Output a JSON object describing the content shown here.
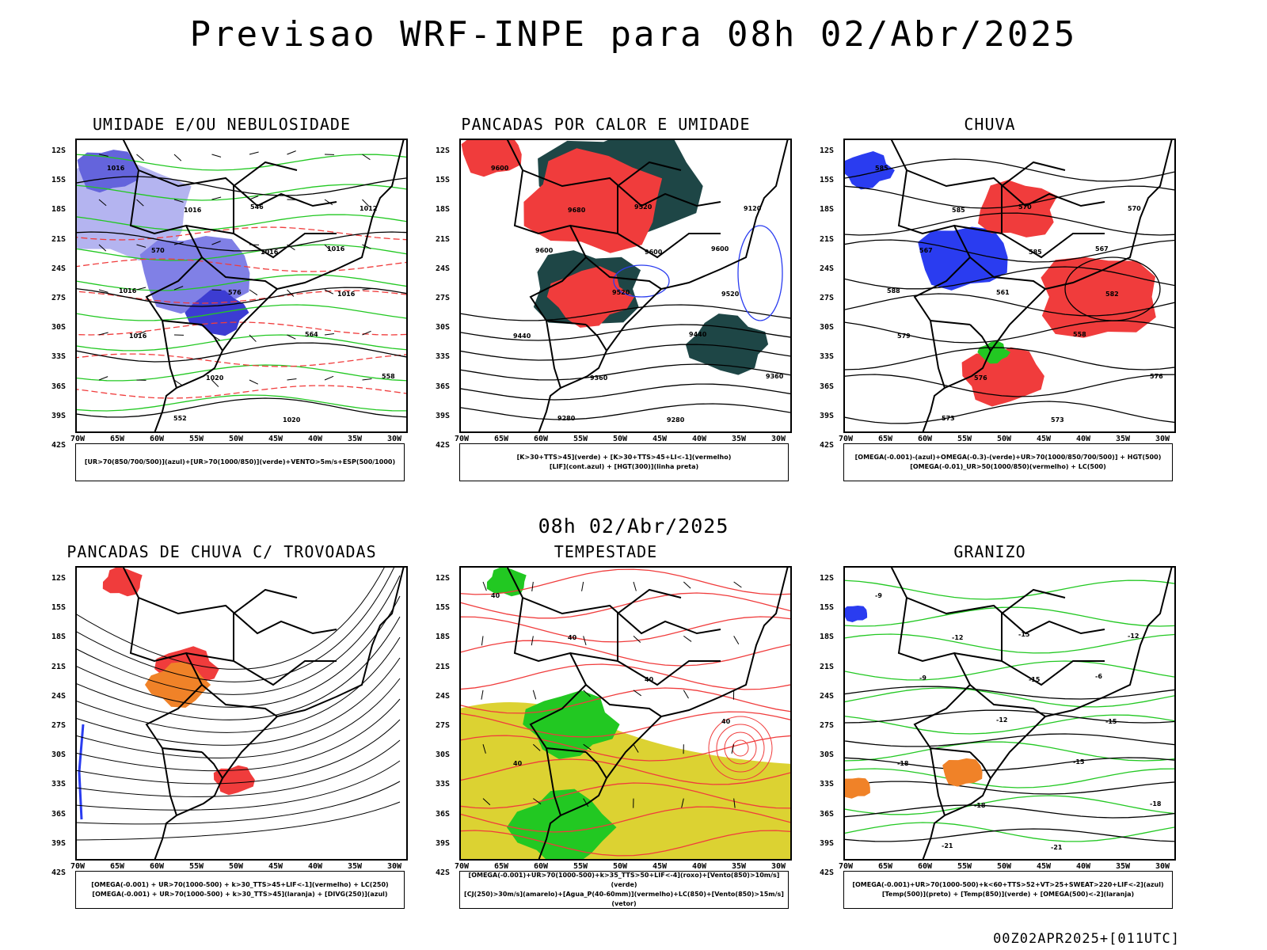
{
  "title": "Previsao WRF-INPE  para 08h 02/Abr/2025",
  "middle_label": "08h 02/Abr/2025",
  "footer_label": "00Z02APR2025+[011UTC]",
  "axes": {
    "lat_labels": [
      "12S",
      "15S",
      "18S",
      "21S",
      "24S",
      "27S",
      "30S",
      "33S",
      "36S",
      "39S",
      "42S"
    ],
    "lon_labels": [
      "70W",
      "65W",
      "60W",
      "55W",
      "50W",
      "45W",
      "40W",
      "35W",
      "30W"
    ]
  },
  "colors": {
    "red": "#f03c3c",
    "blue": "#2a3cf0",
    "green": "#22c822",
    "darkteal": "#1e4646",
    "yellow": "#dcd232",
    "orange": "#f08228",
    "lavender": "#b4b4f0"
  },
  "panels": [
    {
      "title": "UMIDADE E/OU NEBULOSIDADE",
      "legend": [
        "[UR>70(850/700/500)](azul)+[UR>70(1000/850)](verde)+VENTO>5m/s+ESP(500/1000)"
      ],
      "contour_labels": [
        "1016",
        "1016",
        "1016",
        "1016",
        "1016",
        "1020",
        "1020",
        "1012",
        "570",
        "576",
        "564",
        "558",
        "552",
        "546",
        "1016",
        "1016"
      ]
    },
    {
      "title": "PANCADAS POR CALOR E UMIDADE",
      "legend": [
        "[K>30+TTS>45](verde) + [K>30+TTS>45+LI<-1](vermelho)",
        "[LIF](cont.azul) + [HGT(300)](linha preta)"
      ],
      "contour_labels": [
        "9600",
        "9680",
        "9600",
        "9520",
        "9440",
        "9360",
        "9280",
        "9120",
        "9600",
        "9520",
        "9440",
        "9360",
        "9280",
        "9520",
        "9600"
      ]
    },
    {
      "title": "CHUVA",
      "legend": [
        "[OMEGA(-0.001)-(azul)+OMEGA(-0.3)-(verde)+UR>70(1000/850/700/500)] + HGT(500)",
        "[OMEGA(-0.01)_UR>50(1000/850)(vermelho) + LC(500)"
      ],
      "contour_labels": [
        "585",
        "585",
        "585",
        "582",
        "579",
        "576",
        "573",
        "570",
        "567",
        "561",
        "558",
        "576",
        "573",
        "570",
        "567",
        "588"
      ]
    },
    {
      "title": "PANCADAS DE CHUVA C/ TROVOADAS",
      "legend": [
        "[OMEGA(-0.001) + UR>70(1000-500) + k>30_TTS>45+LIF<-1](vermelho) + LC(250)",
        "[OMEGA(-0.001) + UR>70(1000-500) + k>30_TTS>45](laranja) + [DIVG(250)](azul)"
      ],
      "contour_labels": []
    },
    {
      "title": "TEMPESTADE",
      "legend": [
        "[OMEGA(-0.001)+UR>70(1000-500)+k>35_TTS>50+LIF<-4](roxo)+[Vento(850)>10m/s](verde)",
        "[CJ(250)>30m/s](amarelo)+[Agua_P(40-60mm)](vermelho)+LC(850)+[Vento(850)>15m/s](vetor)"
      ],
      "contour_labels": [
        "40",
        "40",
        "40",
        "40",
        "40"
      ]
    },
    {
      "title": "GRANIZO",
      "legend": [
        "[OMEGA(-0.001)+UR>70(1000-500)+k<60+TTS>52+VT>25+SWEAT>220+LIF<-2](azul)",
        "[Temp(500)](preto) + [Temp(850)](verde) + [OMEGA(500)<-2](laranja)"
      ],
      "contour_labels": [
        "-9",
        "-12",
        "-15",
        "-15",
        "-18",
        "-18",
        "-21",
        "-12",
        "-9",
        "-12",
        "-15",
        "-18",
        "-21",
        "-15",
        "-6"
      ]
    }
  ]
}
